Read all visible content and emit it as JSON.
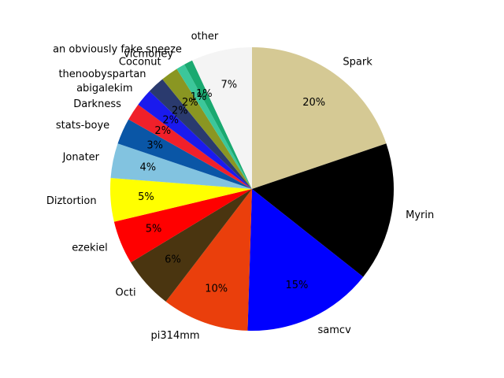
{
  "chart_data": {
    "type": "pie",
    "title": "",
    "start_angle_deg": 90,
    "direction": "clockwise",
    "slices": [
      {
        "label": "Spark",
        "value": 20,
        "pct_label": "20%",
        "color": "#d5c994"
      },
      {
        "label": "Myrin",
        "value": 16,
        "pct_label": "",
        "color": "#000000"
      },
      {
        "label": "samcv",
        "value": 15,
        "pct_label": "15%",
        "color": "#0000ff"
      },
      {
        "label": "pi314mm",
        "value": 10,
        "pct_label": "10%",
        "color": "#ea3f0c"
      },
      {
        "label": "Octi",
        "value": 6,
        "pct_label": "6%",
        "color": "#4a3510"
      },
      {
        "label": "ezekiel",
        "value": 5,
        "pct_label": "5%",
        "color": "#ff0000"
      },
      {
        "label": "Diztortion",
        "value": 5,
        "pct_label": "5%",
        "color": "#ffff00"
      },
      {
        "label": "Jonater",
        "value": 4,
        "pct_label": "4%",
        "color": "#82c3e0"
      },
      {
        "label": "stats-boye",
        "value": 3,
        "pct_label": "3%",
        "color": "#0a56a6"
      },
      {
        "label": "Darkness",
        "value": 2,
        "pct_label": "2%",
        "color": "#f0202a"
      },
      {
        "label": "abigalekim",
        "value": 2,
        "pct_label": "2%",
        "color": "#1a1aee"
      },
      {
        "label": "thenoobyspartan",
        "value": 2,
        "pct_label": "2%",
        "color": "#2a3a6e"
      },
      {
        "label": "Coconut",
        "value": 2,
        "pct_label": "2%",
        "color": "#8a9622"
      },
      {
        "label": "vicmoney",
        "value": 1,
        "pct_label": "1%",
        "color": "#3cc79a"
      },
      {
        "label": "an obviously fake sneeze",
        "value": 1,
        "pct_label": "1%",
        "color": "#1aa970"
      },
      {
        "label": "other",
        "value": 7,
        "pct_label": "7%",
        "color": "#f4f4f4"
      }
    ]
  }
}
